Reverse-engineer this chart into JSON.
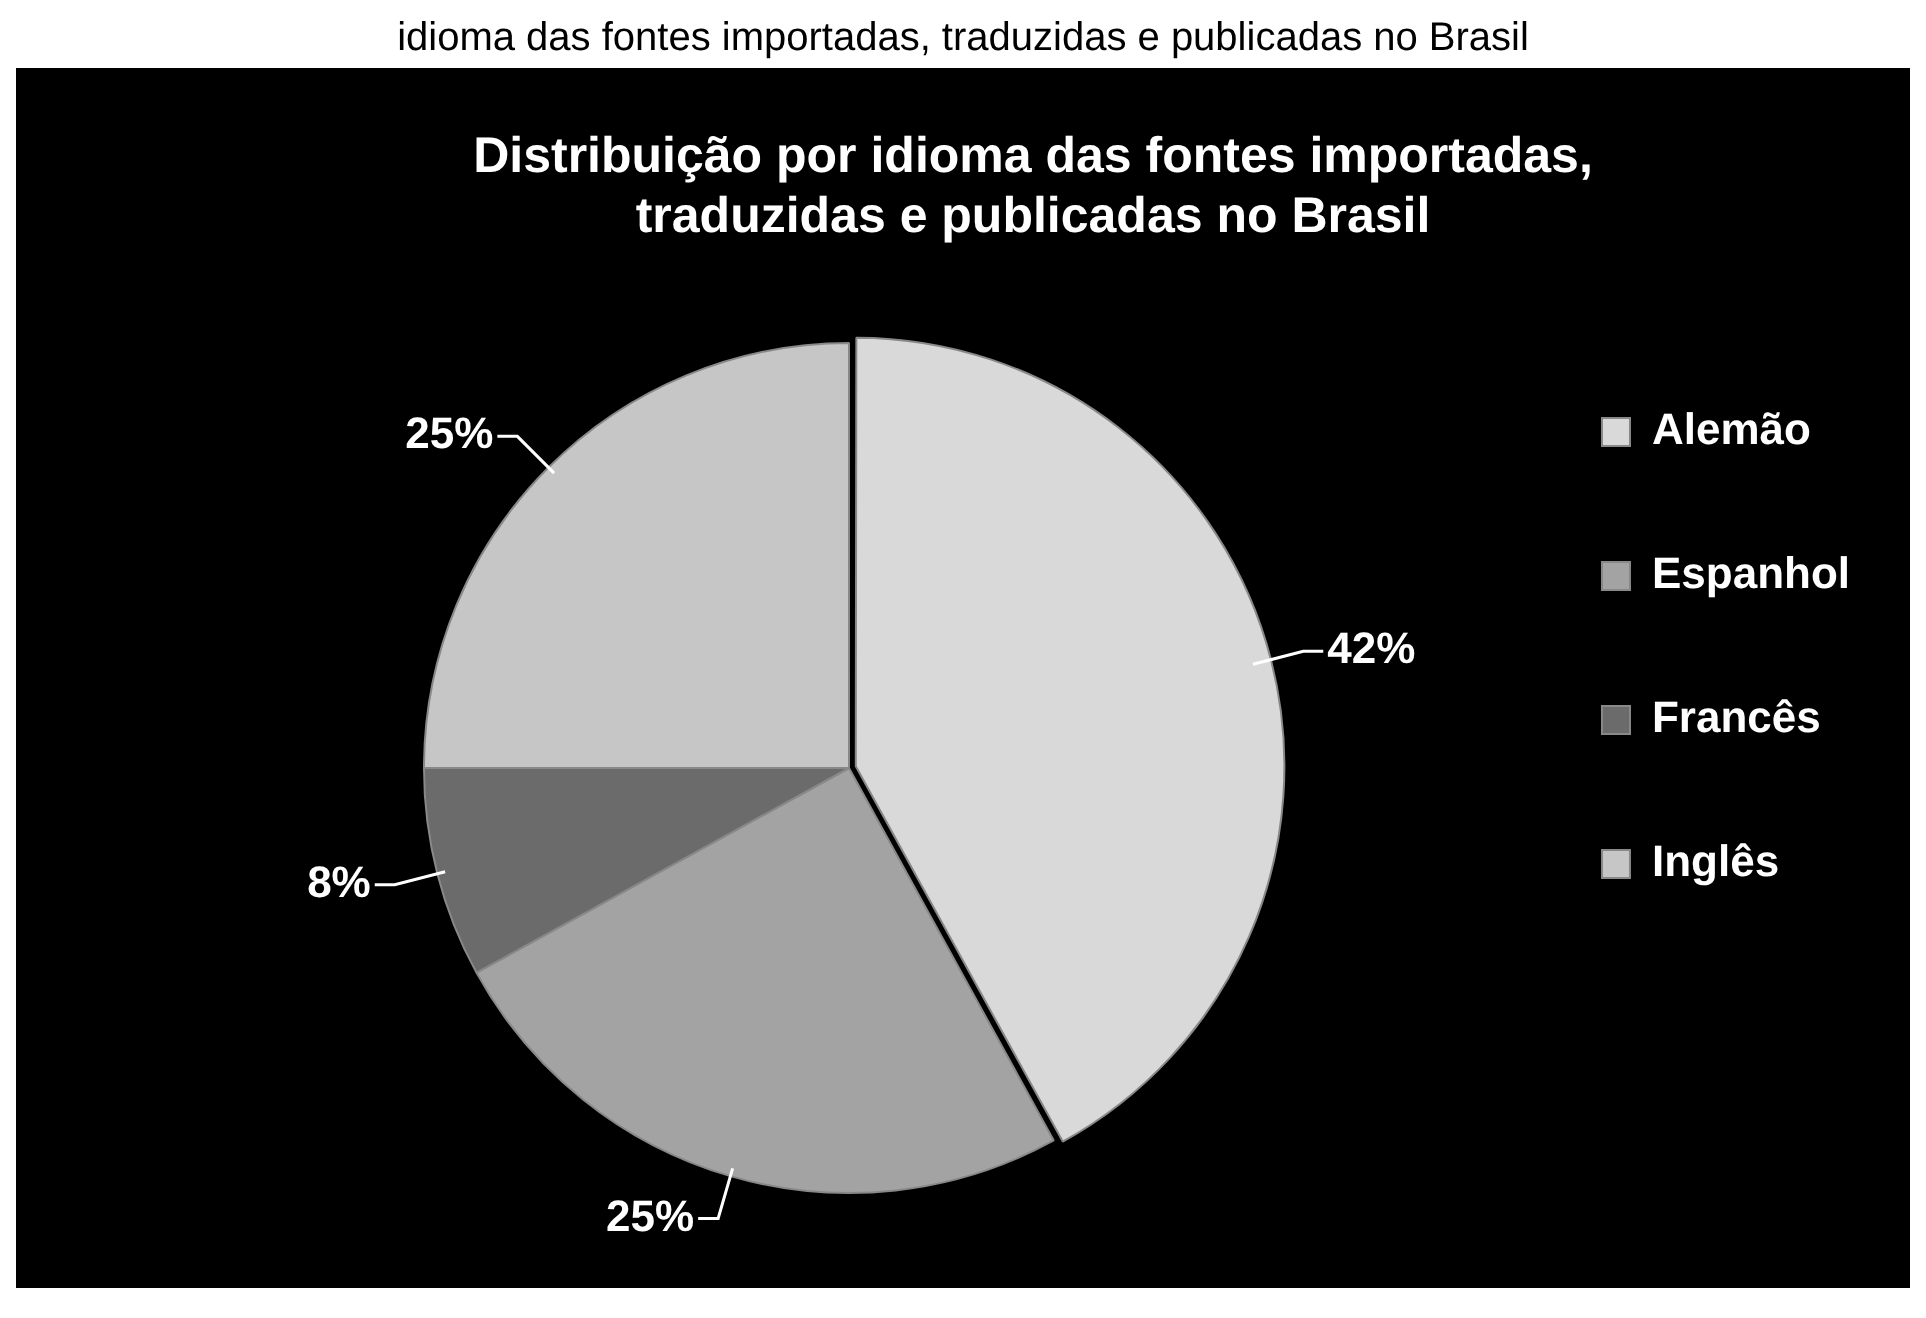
{
  "chart_data": {
    "type": "pie",
    "title": "Distribuição por idioma das fontes importadas, traduzidas e publicadas no Brasil",
    "annotations": [
      "idioma das fontes importadas, traduzidas e publicadas no Brasil"
    ],
    "categories": [
      "Alemão",
      "Espanhol",
      "Francês",
      "Inglês"
    ],
    "values": [
      42,
      25,
      8,
      25
    ],
    "value_labels": [
      "42%",
      "25%",
      "8%",
      "25%"
    ],
    "colors": [
      "#d9d9d9",
      "#a3a3a3",
      "#6b6b6b",
      "#c6c6c6"
    ],
    "legend": "right"
  }
}
